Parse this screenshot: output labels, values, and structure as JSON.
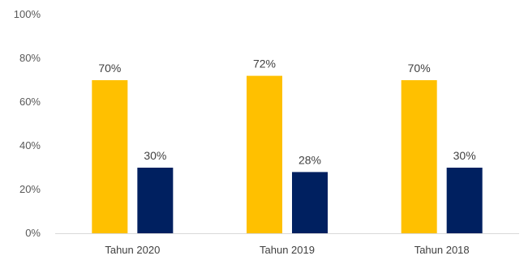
{
  "chart_data": {
    "type": "bar",
    "categories": [
      "Tahun 2020",
      "Tahun 2019",
      "Tahun 2018"
    ],
    "series": [
      {
        "values": [
          70,
          72,
          70
        ],
        "color": "#FFC000",
        "labels": [
          "70%",
          "72%",
          "70%"
        ]
      },
      {
        "values": [
          30,
          28,
          30
        ],
        "color": "#002060",
        "labels": [
          "30%",
          "28%",
          "30%"
        ]
      }
    ],
    "ylim": [
      0,
      100
    ],
    "yticks": [
      0,
      20,
      40,
      60,
      80,
      100
    ],
    "ytick_labels": [
      "0%",
      "20%",
      "40%",
      "60%",
      "80%",
      "100%"
    ],
    "grid": false,
    "title": "",
    "xlabel": "",
    "ylabel": ""
  }
}
